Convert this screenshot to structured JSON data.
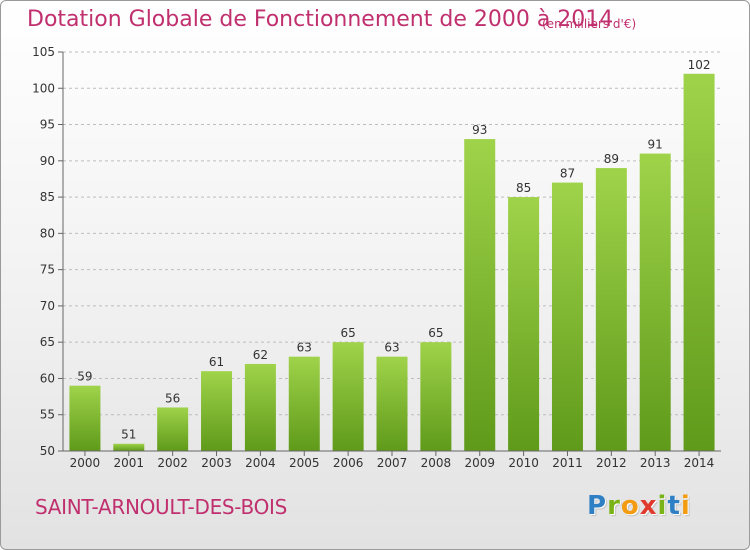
{
  "title": "Dotation Globale de Fonctionnement de 2000 à 2014",
  "subtitle": "(en milliers d'€)",
  "commune": "SAINT-ARNOULT-DES-BOIS",
  "logo": {
    "text": "Proxiti",
    "letters": [
      {
        "char": "P",
        "color": "#2e7fc4"
      },
      {
        "char": "r",
        "color": "#7ab317"
      },
      {
        "char": "o",
        "color": "#f39c12"
      },
      {
        "char": "x",
        "color": "#e03a2f"
      },
      {
        "char": "i",
        "color": "#7ab317"
      },
      {
        "char": "t",
        "color": "#2e7fc4"
      },
      {
        "char": "i",
        "color": "#f39c12"
      }
    ]
  },
  "colors": {
    "title": "#c0306e",
    "bar_light": "#9fd34a",
    "bar_dark": "#5f9a1a",
    "grid": "#bdbdbd"
  },
  "chart_data": {
    "type": "bar",
    "categories": [
      "2000",
      "2001",
      "2002",
      "2003",
      "2004",
      "2005",
      "2006",
      "2007",
      "2008",
      "2009",
      "2010",
      "2011",
      "2012",
      "2013",
      "2014"
    ],
    "values": [
      59,
      51,
      56,
      61,
      62,
      63,
      65,
      63,
      65,
      93,
      85,
      87,
      89,
      91,
      102
    ],
    "ylim": [
      50,
      105
    ],
    "yticks": [
      50,
      55,
      60,
      65,
      70,
      75,
      80,
      85,
      90,
      95,
      100,
      105
    ],
    "grid": true,
    "xlabel": "",
    "ylabel": ""
  }
}
